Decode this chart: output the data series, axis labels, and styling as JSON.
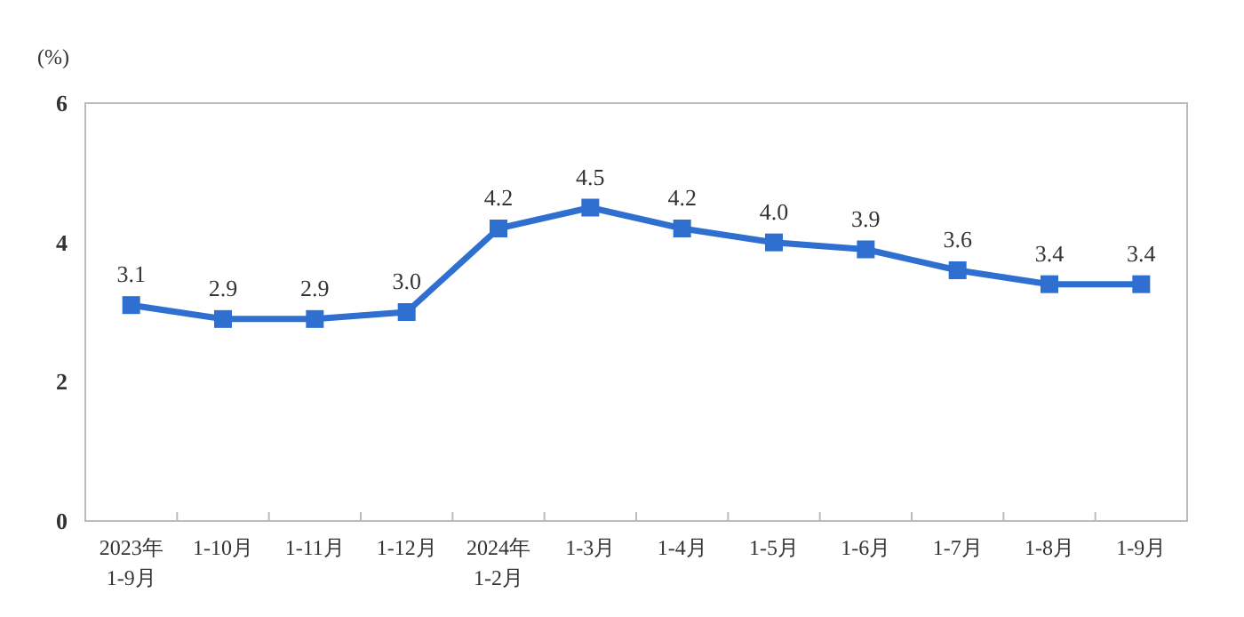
{
  "chart_data": {
    "type": "line",
    "ylabel": "(%)",
    "categories": [
      "2023年\n1-9月",
      "1-10月",
      "1-11月",
      "1-12月",
      "2024年\n1-2月",
      "1-3月",
      "1-4月",
      "1-5月",
      "1-6月",
      "1-7月",
      "1-8月",
      "1-9月"
    ],
    "series": [
      {
        "color": "#2f6fd0",
        "values": [
          3.1,
          2.9,
          2.9,
          3.0,
          4.2,
          4.5,
          4.2,
          4.0,
          3.9,
          3.6,
          3.4,
          3.4
        ],
        "value_labels": [
          "3.1",
          "2.9",
          "2.9",
          "3.0",
          "4.2",
          "4.5",
          "4.2",
          "4.0",
          "3.9",
          "3.6",
          "3.4",
          "3.4"
        ]
      }
    ],
    "ylim": [
      0,
      6
    ],
    "yticks": [
      0,
      2,
      4,
      6
    ],
    "marker": "square",
    "line_style": "solid"
  }
}
